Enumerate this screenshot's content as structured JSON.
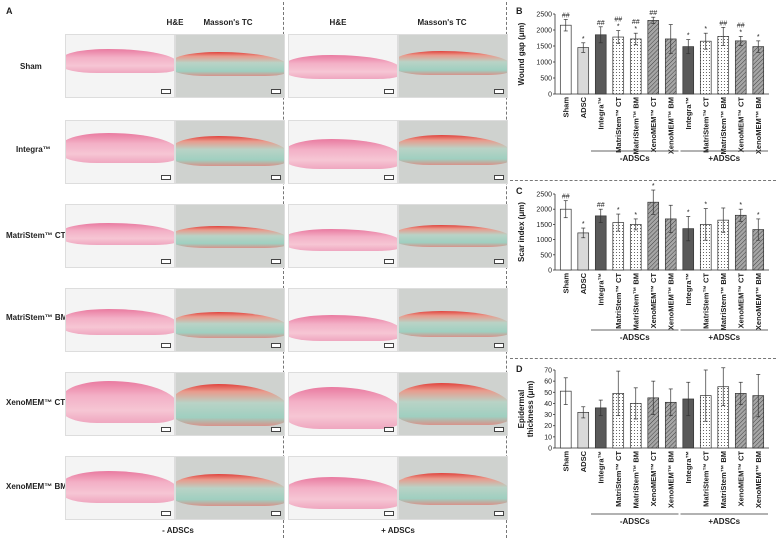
{
  "figure": {
    "panel_a_letter": "A",
    "col_headers": [
      "H&E",
      "Masson's TC",
      "H&E",
      "Masson's TC"
    ],
    "row_labels": [
      "Sham",
      "Integra™",
      "MatriStem™ CT",
      "MatriStem™ BM",
      "XenoMEM™ CT",
      "XenoMEM™ BM"
    ],
    "bottom_labels": [
      "- ADSCs",
      "+ ADSCs"
    ]
  },
  "colors": {
    "white": "#ffffff",
    "light_gray": "#d9d9d9",
    "dark_gray": "#595959",
    "dotted": "#ffffff",
    "hatched": "#a6a6a6",
    "axis": "#333333"
  },
  "chart_data": [
    {
      "panel": "B",
      "type": "bar",
      "ylabel": "Wound gap (μm)",
      "ylim": [
        0,
        2500
      ],
      "yticks": [
        0,
        500,
        1000,
        1500,
        2000,
        2500
      ],
      "categories": [
        "Sham",
        "ADSC",
        "Integra™",
        "MatriStem™ CT",
        "MatriStem™ BM",
        "XenoMEM™ CT",
        "XenoMEM™ BM",
        "Integra™",
        "MatriStem™ CT",
        "MatriStem™ BM",
        "XenoMEM™ CT",
        "XenoMEM™ BM"
      ],
      "fills": [
        "white",
        "light",
        "dark",
        "dot",
        "dot",
        "hatch",
        "hatch",
        "dark",
        "dot",
        "dot",
        "hatch",
        "hatch"
      ],
      "values": [
        2150,
        1450,
        1850,
        1780,
        1720,
        2300,
        1720,
        1480,
        1650,
        1800,
        1660,
        1480
      ],
      "errors": [
        180,
        150,
        250,
        200,
        180,
        100,
        450,
        220,
        250,
        280,
        140,
        180
      ],
      "annotations": [
        "##",
        "*",
        "##",
        "##\n*",
        "##\n*",
        "##",
        "",
        "*",
        "*",
        "##",
        "##\n*",
        "*"
      ],
      "groups": [
        "-ADSCs",
        "+ADSCs"
      ]
    },
    {
      "panel": "C",
      "type": "bar",
      "ylabel": "Scar index (μm)",
      "ylim": [
        0,
        2500
      ],
      "yticks": [
        0,
        500,
        1000,
        1500,
        2000,
        2500
      ],
      "categories": [
        "Sham",
        "ADSC",
        "Integra™",
        "MatriStem™ CT",
        "MatriStem™ BM",
        "XenoMEM™ CT",
        "XenoMEM™ BM",
        "Integra™",
        "MatriStem™ CT",
        "MatriStem™ BM",
        "XenoMEM™ CT",
        "XenoMEM™ BM"
      ],
      "fills": [
        "white",
        "light",
        "dark",
        "dot",
        "dot",
        "hatch",
        "hatch",
        "dark",
        "dot",
        "dot",
        "hatch",
        "hatch"
      ],
      "values": [
        2000,
        1220,
        1780,
        1560,
        1500,
        2230,
        1680,
        1360,
        1500,
        1640,
        1800,
        1330
      ],
      "errors": [
        280,
        160,
        220,
        280,
        180,
        400,
        450,
        400,
        520,
        400,
        200,
        350
      ],
      "annotations": [
        "##",
        "*",
        "##",
        "*",
        "*",
        "##\n*",
        "",
        "*",
        "*",
        "",
        "*",
        "*"
      ],
      "groups": [
        "-ADSCs",
        "+ADSCs"
      ]
    },
    {
      "panel": "D",
      "type": "bar",
      "ylabel": "Epidermal thickness (μm)",
      "ylim": [
        0,
        70
      ],
      "yticks": [
        0,
        10,
        20,
        30,
        40,
        50,
        60,
        70
      ],
      "categories": [
        "Sham",
        "ADSC",
        "Integra™",
        "MatriStem™ CT",
        "MatriStem™ BM",
        "XenoMEM™ CT",
        "XenoMEM™ BM",
        "Integra™",
        "MatriStem™ CT",
        "MatriStem™ BM",
        "XenoMEM™ CT",
        "XenoMEM™ BM"
      ],
      "fills": [
        "white",
        "light",
        "dark",
        "dot",
        "dot",
        "hatch",
        "hatch",
        "dark",
        "dot",
        "dot",
        "hatch",
        "hatch"
      ],
      "values": [
        51,
        32,
        36,
        49,
        40,
        45,
        41,
        44,
        47,
        55,
        49,
        47
      ],
      "errors": [
        12,
        5,
        7,
        20,
        14,
        15,
        12,
        15,
        23,
        17,
        10,
        19
      ],
      "annotations": [
        "",
        "",
        "",
        "",
        "",
        "",
        "",
        "",
        "",
        "",
        "",
        ""
      ],
      "groups": [
        "-ADSCs",
        "+ADSCs"
      ]
    }
  ]
}
